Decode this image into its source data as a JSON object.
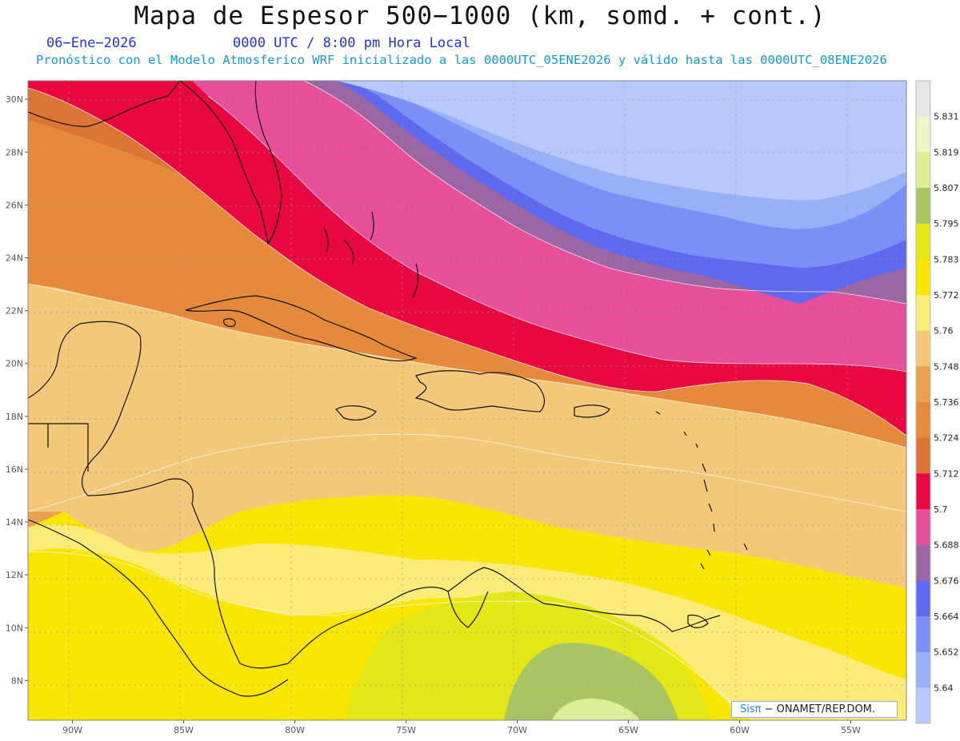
{
  "header": {
    "title": "Mapa de Espesor 500−1000 (km, somd. + cont.)",
    "date": "06−Ene−2026",
    "time": "0000 UTC / 8:00 pm Hora Local",
    "subtitle": "Pronóstico con el Modelo Atmosferico WRF inicializado a las 0000UTC_05ENE2026 y válido hasta las  0000UTC_08ENE2026"
  },
  "map": {
    "lat_labels": [
      "30N",
      "28N",
      "26N",
      "24N",
      "22N",
      "20N",
      "18N",
      "16N",
      "14N",
      "12N",
      "10N",
      "8N"
    ],
    "lon_labels": [
      "90W",
      "85W",
      "80W",
      "75W",
      "70W",
      "65W",
      "60W",
      "55W"
    ],
    "lon_range": [
      -92,
      -52.5
    ],
    "lat_range": [
      6.5,
      30.7
    ]
  },
  "colorbar": {
    "levels": [
      "5.831",
      "5.819",
      "5.807",
      "5.795",
      "5.783",
      "5.772",
      "5.76",
      "5.748",
      "5.736",
      "5.724",
      "5.712",
      "5.7",
      "5.688",
      "5.676",
      "5.664",
      "5.652",
      "5.64"
    ],
    "colors": [
      "#e6e6e6",
      "#eef5c8",
      "#dcef98",
      "#a9c463",
      "#e3e617",
      "#f8e600",
      "#fbec7a",
      "#f3c879",
      "#eba250",
      "#e48a3a",
      "#dc7436",
      "#e8073e",
      "#e84f9a",
      "#9a66a4",
      "#5f69f0",
      "#7b90f7",
      "#98b0f8",
      "#b9c8fb"
    ]
  },
  "credit": {
    "brand": "Sisπ",
    "text": "− ONAMET/REP.DOM."
  }
}
